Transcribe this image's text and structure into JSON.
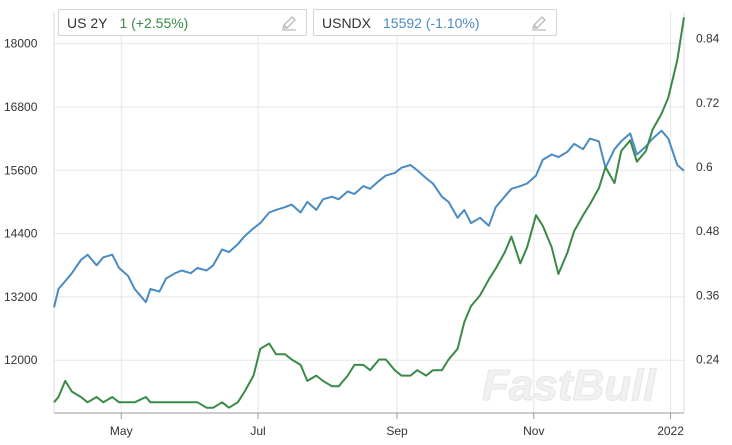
{
  "legend": [
    {
      "symbol": "US 2Y",
      "value_text": "1 (+2.55%)",
      "color": "#3a8a47",
      "icon": "pencil-icon"
    },
    {
      "symbol": "USNDX",
      "value_text": "15592 (-1.10%)",
      "color": "#4a8bc2",
      "icon": "pencil-icon"
    }
  ],
  "watermark": "FastBull",
  "chart_data": {
    "type": "line",
    "x_ticks": [
      "May",
      "Jul",
      "Sep",
      "Nov",
      "2022"
    ],
    "y_left": {
      "ticks": [
        "12000",
        "13200",
        "14400",
        "15600",
        "16800",
        "18000"
      ],
      "lim": [
        11000,
        18600
      ]
    },
    "y_right": {
      "ticks": [
        "0.24",
        "0.36",
        "0.48",
        "0.6",
        "0.72",
        "0.84"
      ],
      "lim": [
        0.14,
        0.89
      ]
    },
    "grid": true,
    "x_range": [
      "2021-04-01",
      "2022-01-07"
    ],
    "series": [
      {
        "name": "USNDX",
        "axis": "left",
        "color": "#4a8bc2",
        "x": [
          "2021-04-01",
          "2021-04-03",
          "2021-04-06",
          "2021-04-09",
          "2021-04-13",
          "2021-04-16",
          "2021-04-20",
          "2021-04-23",
          "2021-04-27",
          "2021-04-30",
          "2021-05-04",
          "2021-05-07",
          "2021-05-12",
          "2021-05-14",
          "2021-05-18",
          "2021-05-21",
          "2021-05-25",
          "2021-05-28",
          "2021-06-01",
          "2021-06-04",
          "2021-06-08",
          "2021-06-11",
          "2021-06-15",
          "2021-06-18",
          "2021-06-22",
          "2021-06-25",
          "2021-06-29",
          "2021-07-02",
          "2021-07-06",
          "2021-07-09",
          "2021-07-13",
          "2021-07-16",
          "2021-07-20",
          "2021-07-23",
          "2021-07-27",
          "2021-07-30",
          "2021-08-03",
          "2021-08-06",
          "2021-08-10",
          "2021-08-13",
          "2021-08-17",
          "2021-08-20",
          "2021-08-24",
          "2021-08-27",
          "2021-08-31",
          "2021-09-03",
          "2021-09-07",
          "2021-09-10",
          "2021-09-14",
          "2021-09-17",
          "2021-09-21",
          "2021-09-24",
          "2021-09-28",
          "2021-10-01",
          "2021-10-04",
          "2021-10-08",
          "2021-10-12",
          "2021-10-15",
          "2021-10-19",
          "2021-10-22",
          "2021-10-26",
          "2021-10-29",
          "2021-11-02",
          "2021-11-05",
          "2021-11-09",
          "2021-11-12",
          "2021-11-16",
          "2021-11-19",
          "2021-11-23",
          "2021-11-26",
          "2021-11-30",
          "2021-12-03",
          "2021-12-07",
          "2021-12-10",
          "2021-12-14",
          "2021-12-17",
          "2021-12-21",
          "2021-12-24",
          "2021-12-28",
          "2021-12-31",
          "2022-01-04",
          "2022-01-07"
        ],
        "values": [
          13000,
          13350,
          13500,
          13650,
          13900,
          14000,
          13800,
          13950,
          14000,
          13750,
          13600,
          13350,
          13100,
          13350,
          13300,
          13550,
          13650,
          13700,
          13650,
          13750,
          13700,
          13800,
          14100,
          14050,
          14200,
          14350,
          14500,
          14600,
          14800,
          14850,
          14900,
          14950,
          14800,
          15000,
          14850,
          15050,
          15100,
          15050,
          15200,
          15150,
          15300,
          15250,
          15400,
          15500,
          15550,
          15650,
          15700,
          15600,
          15450,
          15350,
          15100,
          15000,
          14700,
          14850,
          14600,
          14700,
          14550,
          14900,
          15100,
          15250,
          15300,
          15350,
          15500,
          15800,
          15900,
          15850,
          15950,
          16100,
          16000,
          16200,
          16150,
          15650,
          16000,
          16150,
          16300,
          15900,
          16050,
          16200,
          16350,
          16200,
          15700,
          15592
        ]
      },
      {
        "name": "US 2Y",
        "axis": "right",
        "color": "#3a8a47",
        "x": [
          "2021-04-01",
          "2021-04-03",
          "2021-04-06",
          "2021-04-09",
          "2021-04-13",
          "2021-04-16",
          "2021-04-20",
          "2021-04-23",
          "2021-04-27",
          "2021-04-30",
          "2021-05-04",
          "2021-05-07",
          "2021-05-12",
          "2021-05-14",
          "2021-05-18",
          "2021-05-21",
          "2021-05-25",
          "2021-05-28",
          "2021-06-01",
          "2021-06-04",
          "2021-06-08",
          "2021-06-11",
          "2021-06-15",
          "2021-06-18",
          "2021-06-22",
          "2021-06-25",
          "2021-06-29",
          "2021-07-02",
          "2021-07-06",
          "2021-07-09",
          "2021-07-13",
          "2021-07-16",
          "2021-07-20",
          "2021-07-23",
          "2021-07-27",
          "2021-07-30",
          "2021-08-03",
          "2021-08-06",
          "2021-08-10",
          "2021-08-13",
          "2021-08-17",
          "2021-08-20",
          "2021-08-24",
          "2021-08-27",
          "2021-08-31",
          "2021-09-03",
          "2021-09-07",
          "2021-09-10",
          "2021-09-14",
          "2021-09-17",
          "2021-09-21",
          "2021-09-24",
          "2021-09-28",
          "2021-10-01",
          "2021-10-04",
          "2021-10-08",
          "2021-10-12",
          "2021-10-15",
          "2021-10-19",
          "2021-10-22",
          "2021-10-26",
          "2021-10-29",
          "2021-11-02",
          "2021-11-05",
          "2021-11-09",
          "2021-11-12",
          "2021-11-16",
          "2021-11-19",
          "2021-11-23",
          "2021-11-26",
          "2021-11-30",
          "2021-12-03",
          "2021-12-07",
          "2021-12-10",
          "2021-12-14",
          "2021-12-17",
          "2021-12-21",
          "2021-12-24",
          "2021-12-28",
          "2021-12-31",
          "2022-01-04",
          "2022-01-07"
        ],
        "values": [
          0.16,
          0.17,
          0.2,
          0.18,
          0.17,
          0.16,
          0.17,
          0.16,
          0.17,
          0.16,
          0.16,
          0.16,
          0.17,
          0.16,
          0.16,
          0.16,
          0.16,
          0.16,
          0.16,
          0.16,
          0.15,
          0.15,
          0.16,
          0.15,
          0.16,
          0.18,
          0.21,
          0.26,
          0.27,
          0.25,
          0.25,
          0.24,
          0.23,
          0.2,
          0.21,
          0.2,
          0.19,
          0.19,
          0.21,
          0.23,
          0.23,
          0.22,
          0.24,
          0.24,
          0.22,
          0.21,
          0.21,
          0.22,
          0.21,
          0.22,
          0.22,
          0.24,
          0.26,
          0.31,
          0.34,
          0.36,
          0.39,
          0.41,
          0.44,
          0.47,
          0.42,
          0.45,
          0.51,
          0.49,
          0.45,
          0.4,
          0.44,
          0.48,
          0.51,
          0.53,
          0.56,
          0.6,
          0.57,
          0.63,
          0.65,
          0.61,
          0.63,
          0.67,
          0.7,
          0.73,
          0.8,
          0.88
        ]
      }
    ]
  }
}
